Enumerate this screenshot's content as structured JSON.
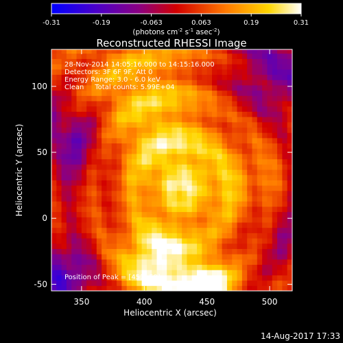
{
  "chart_data": {
    "type": "heatmap",
    "title": "Reconstructed RHESSI Image",
    "xlabel": "Heliocentric X (arcsec)",
    "ylabel": "Heliocentric Y (arcsec)",
    "xlim": [
      326,
      518
    ],
    "ylim": [
      -55,
      128
    ],
    "xticks": [
      350,
      400,
      450,
      500
    ],
    "yticks": [
      -50,
      0,
      50,
      100
    ],
    "colorbar": {
      "range": [
        -0.31,
        0.31
      ],
      "ticks": [
        "-0.31",
        "-0.19",
        "-0.063",
        "0.063",
        "0.19",
        "0.31"
      ],
      "unit_label": "(photons cm",
      "unit_label_parts": [
        "(photons cm",
        "-2",
        " s",
        "-1",
        " asec",
        "-2",
        ")"
      ]
    },
    "annotations": [
      "28-Nov-2014 14:05:16.000 to 14:15:16.000",
      "Detectors: 3F 6F 9F, Att 0",
      "Energy Range: 3.0 - 6.0 keV",
      "Clean     Total counts: 5.99E+04"
    ],
    "peak_label": "Position of Peak = [451,-59]",
    "peak": [
      451,
      -59
    ],
    "colormap": "hot-purple",
    "sources": [
      {
        "x": 410,
        "y": -35,
        "amplitude": 0.29,
        "sigma": 22
      },
      {
        "x": 452,
        "y": -55,
        "amplitude": 0.31,
        "sigma": 16
      },
      {
        "x": 420,
        "y": 40,
        "amplitude": 0.17,
        "sigma": 30
      },
      {
        "x": 395,
        "y": 100,
        "amplitude": 0.15,
        "sigma": 35
      },
      {
        "x": 470,
        "y": 20,
        "amplitude": 0.12,
        "sigma": 30
      }
    ],
    "negative_regions": [
      {
        "x": 335,
        "y": -45,
        "amplitude": -0.22,
        "sigma": 18
      },
      {
        "x": 340,
        "y": 60,
        "amplitude": -0.18,
        "sigma": 22
      },
      {
        "x": 505,
        "y": 110,
        "amplitude": -0.15,
        "sigma": 25
      },
      {
        "x": 510,
        "y": -10,
        "amplitude": -0.1,
        "sigma": 20
      }
    ]
  },
  "date_stamp": "14-Aug-2017 17:33"
}
